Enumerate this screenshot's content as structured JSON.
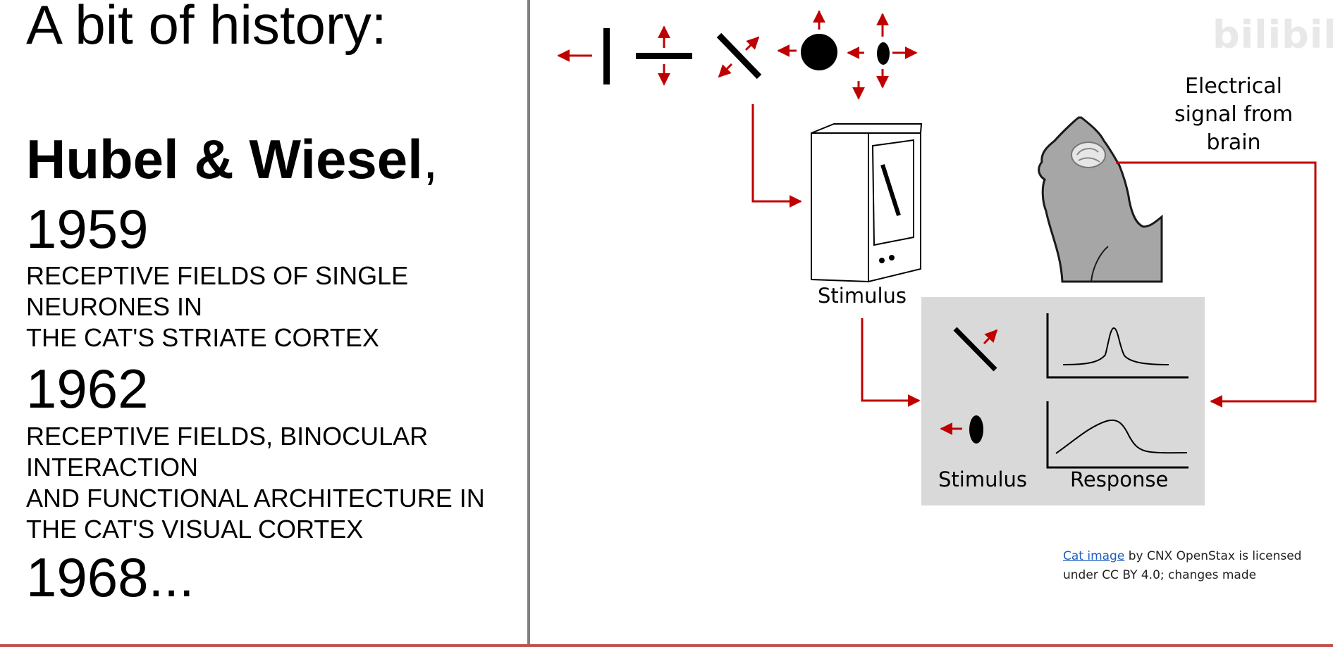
{
  "heading": "A bit of history:",
  "authors": "Hubel & Wiesel",
  "authors_comma": ",",
  "papers": [
    {
      "year": "1959",
      "title": [
        "RECEPTIVE FIELDS OF SINGLE",
        "NEURONES IN",
        "THE CAT'S STRIATE CORTEX"
      ]
    },
    {
      "year": "1962",
      "title": [
        "RECEPTIVE FIELDS, BINOCULAR",
        "INTERACTION",
        "AND FUNCTIONAL ARCHITECTURE IN",
        "THE CAT'S VISUAL CORTEX"
      ]
    }
  ],
  "more_years": "1968...",
  "diagram": {
    "stimulus_label": "Stimulus",
    "signal_label": "Electrical signal from brain",
    "panel_stimulus_label": "Stimulus",
    "panel_response_label": "Response"
  },
  "credit": {
    "link_text": "Cat image",
    "line1_rest": " by CNX OpenStax is licensed",
    "line2": "under CC BY 4.0; changes made"
  },
  "watermark": "bilibili",
  "colors": {
    "arrow": "#c00000",
    "panel": "#d9d9d9",
    "divider": "#7f7f7f",
    "cat": "#a6a6a6"
  }
}
